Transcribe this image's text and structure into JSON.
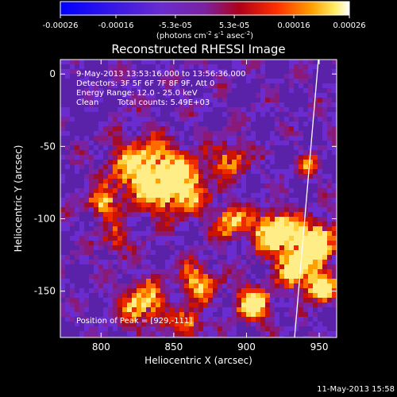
{
  "colorbar": {
    "ticks": [
      "-0.00026",
      "-0.00016",
      "-5.3e-05",
      "5.3e-05",
      "0.00016",
      "0.00026"
    ],
    "tick_values": [
      -0.00026,
      -0.00016,
      -5.3e-05,
      5.3e-05,
      0.00016,
      0.00026
    ],
    "units_main": "(photons cm",
    "units_sup1": "-2",
    "units_mid": " s",
    "units_sup2": "-1",
    "units_end": " asec",
    "units_sup3": "-2",
    "units_close": ")"
  },
  "chart_data": {
    "type": "heatmap",
    "title": "Reconstructed RHESSI Image",
    "xlabel": "Heliocentric X (arcsec)",
    "ylabel": "Heliocentric Y (arcsec)",
    "xlim": [
      772,
      962
    ],
    "ylim": [
      -182,
      10
    ],
    "xticks": [
      800,
      850,
      900,
      950
    ],
    "yticks": [
      0,
      -50,
      -100,
      -150
    ],
    "annotations": [
      "9-May-2013 13:53:16.000 to 13:56:36.000",
      "Detectors: 3F 5F 6F 7F 8F 9F, Att 0",
      "Energy Range: 12.0 - 25.0 keV",
      "Clean",
      "Total counts: 5.49E+03"
    ],
    "peak_label": "Position of Peak = [929,-111]",
    "peak": [
      929,
      -111
    ],
    "color_range": [
      -0.00026,
      0.00026
    ],
    "colormap": [
      "#0000ff",
      "#6a2ccf",
      "#7a22a0",
      "#a00c2a",
      "#e81e00",
      "#ff8a00",
      "#ffee44",
      "#ffffff"
    ]
  },
  "footer": {
    "timestamp": "11-May-2013 15:58"
  }
}
